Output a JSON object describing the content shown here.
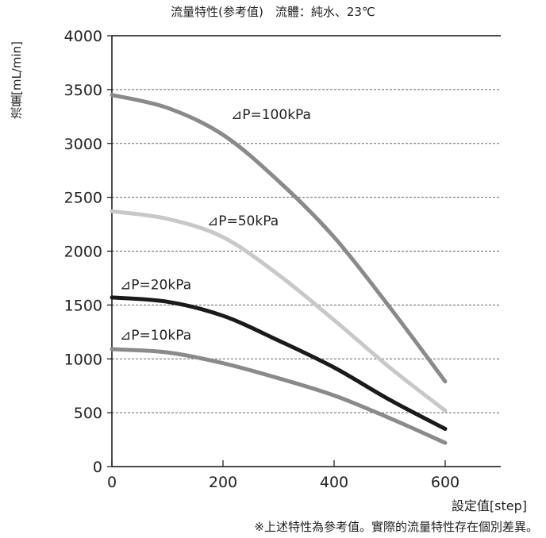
{
  "chart_data": {
    "type": "line",
    "title": "流量特性(参考值)　流體：純水、23℃",
    "xlabel": "設定值[step]",
    "ylabel": "流量[mL/min]",
    "footnote": "※上述特性為參考值。實際的流量特性存在個別差異。",
    "xlim": [
      0,
      700
    ],
    "ylim": [
      0,
      4000
    ],
    "xticks": [
      0,
      200,
      400,
      600
    ],
    "yticks": [
      0,
      500,
      1000,
      1500,
      2000,
      2500,
      3000,
      3500,
      4000
    ],
    "grid": "horizontal-dashed",
    "series": [
      {
        "name": "⊿P=100kPa",
        "color": "#8a8a8a",
        "points": [
          [
            0,
            3450
          ],
          [
            100,
            3330
          ],
          [
            200,
            3080
          ],
          [
            300,
            2650
          ],
          [
            400,
            2130
          ],
          [
            500,
            1480
          ],
          [
            600,
            790
          ]
        ]
      },
      {
        "name": "⊿P=50kPa",
        "color": "#c8c8c8",
        "points": [
          [
            0,
            2370
          ],
          [
            100,
            2300
          ],
          [
            200,
            2130
          ],
          [
            300,
            1780
          ],
          [
            400,
            1360
          ],
          [
            500,
            920
          ],
          [
            600,
            520
          ]
        ]
      },
      {
        "name": "⊿P=20kPa",
        "color": "#1a1a1a",
        "points": [
          [
            0,
            1570
          ],
          [
            100,
            1530
          ],
          [
            200,
            1400
          ],
          [
            300,
            1170
          ],
          [
            400,
            920
          ],
          [
            500,
            620
          ],
          [
            600,
            350
          ]
        ]
      },
      {
        "name": "⊿P=10kPa",
        "color": "#8a8a8a",
        "points": [
          [
            0,
            1090
          ],
          [
            100,
            1060
          ],
          [
            200,
            960
          ],
          [
            300,
            820
          ],
          [
            400,
            660
          ],
          [
            500,
            450
          ],
          [
            600,
            220
          ]
        ]
      }
    ]
  }
}
